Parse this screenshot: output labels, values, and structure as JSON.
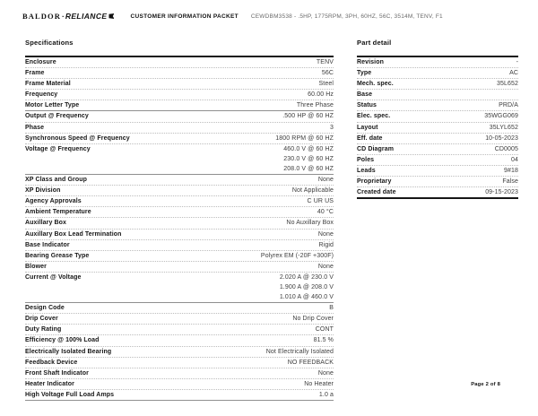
{
  "header": {
    "logo": {
      "brand_left": "BALDOR",
      "separator": "·",
      "brand_right": "RELIANCE"
    },
    "title": "CUSTOMER INFORMATION PACKET",
    "product_code": "CEWDBM3538 - .5HP, 1775RPM, 3PH, 60HZ, 56C, 3514M, TENV, F1"
  },
  "specifications": {
    "heading": "Specifications",
    "rows": [
      {
        "label": "Enclosure",
        "values": [
          "TENV"
        ]
      },
      {
        "label": "Frame",
        "values": [
          "56C"
        ]
      },
      {
        "label": "Frame Material",
        "values": [
          "Steel"
        ]
      },
      {
        "label": "Frequency",
        "values": [
          "60.00 Hz"
        ]
      },
      {
        "label": "Motor Letter Type",
        "values": [
          "Three Phase"
        ]
      },
      {
        "label": "Output @ Frequency",
        "values": [
          ".500 HP @ 60 HZ"
        ],
        "section_start": true
      },
      {
        "label": "Phase",
        "values": [
          "3"
        ]
      },
      {
        "label": "Synchronous Speed @ Frequency",
        "values": [
          "1800 RPM @ 60 HZ"
        ]
      },
      {
        "label": "Voltage @ Frequency",
        "values": [
          "460.0 V @ 60 HZ",
          "230.0 V @ 60 HZ",
          "208.0 V @ 60 HZ"
        ]
      },
      {
        "label": "XP Class and Group",
        "values": [
          "None"
        ],
        "section_start": true
      },
      {
        "label": "XP Division",
        "values": [
          "Not Applicable"
        ]
      },
      {
        "label": "Agency Approvals",
        "values": [
          "C UR US"
        ]
      },
      {
        "label": "Ambient Temperature",
        "values": [
          "40 °C"
        ]
      },
      {
        "label": "Auxillary Box",
        "values": [
          "No Auxillary Box"
        ]
      },
      {
        "label": "Auxillary Box Lead Termination",
        "values": [
          "None"
        ]
      },
      {
        "label": "Base Indicator",
        "values": [
          "Rigid"
        ]
      },
      {
        "label": "Bearing Grease Type",
        "values": [
          "Polyrex EM (-20F +300F)"
        ]
      },
      {
        "label": "Blower",
        "values": [
          "None"
        ]
      },
      {
        "label": "Current @ Voltage",
        "values": [
          "2.020 A @ 230.0 V",
          "1.900 A @ 208.0 V",
          "1.010 A @ 460.0 V"
        ]
      },
      {
        "label": "Design Code",
        "values": [
          "B"
        ],
        "section_start": true
      },
      {
        "label": "Drip Cover",
        "values": [
          "No Drip Cover"
        ]
      },
      {
        "label": "Duty Rating",
        "values": [
          "CONT"
        ]
      },
      {
        "label": "Efficiency @ 100% Load",
        "values": [
          "81.5 %"
        ]
      },
      {
        "label": "Electrically Isolated Bearing",
        "values": [
          "Not Electrically Isolated"
        ]
      },
      {
        "label": "Feedback Device",
        "values": [
          "NO FEEDBACK"
        ]
      },
      {
        "label": "Front Shaft Indicator",
        "values": [
          "None"
        ]
      },
      {
        "label": "Heater Indicator",
        "values": [
          "No Heater"
        ]
      },
      {
        "label": "High Voltage Full Load Amps",
        "values": [
          "1.0 a"
        ]
      }
    ]
  },
  "part_detail": {
    "heading": "Part detail",
    "rows": [
      {
        "label": "Revision",
        "values": [
          "-"
        ]
      },
      {
        "label": "Type",
        "values": [
          "AC"
        ]
      },
      {
        "label": "Mech. spec.",
        "values": [
          "35L652"
        ]
      },
      {
        "label": "Base",
        "values": [
          ""
        ]
      },
      {
        "label": "Status",
        "values": [
          "PRD/A"
        ]
      },
      {
        "label": "Elec. spec.",
        "values": [
          "35WGG069"
        ]
      },
      {
        "label": "Layout",
        "values": [
          "35LYL652"
        ]
      },
      {
        "label": "Eff. date",
        "values": [
          "10-05-2023"
        ]
      },
      {
        "label": "CD Diagram",
        "values": [
          "CD0005"
        ]
      },
      {
        "label": "Poles",
        "values": [
          "04"
        ]
      },
      {
        "label": "Leads",
        "values": [
          "9#18"
        ]
      },
      {
        "label": "Proprietary",
        "values": [
          "False"
        ]
      },
      {
        "label": "Created date",
        "values": [
          "09-15-2023"
        ]
      }
    ]
  },
  "footer": {
    "page_label": "Page 2 of 8"
  },
  "colors": {
    "page_background": "#ffffff",
    "text_primary": "#161616",
    "text_secondary": "#3d3d3d",
    "text_muted": "#6b6b6b"
  }
}
